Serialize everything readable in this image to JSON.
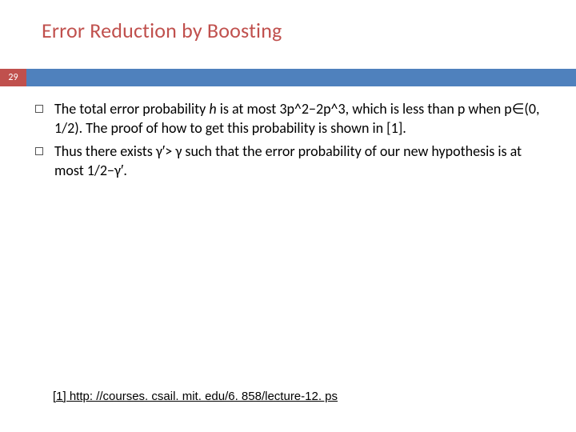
{
  "slide": {
    "number": "29",
    "title": "Error Reduction by Boosting",
    "title_color": "#c0504d",
    "bar_color": "#4f81bd",
    "number_box_color": "#c0504d",
    "background_color": "#ffffff",
    "bullets": [
      {
        "prefix": "The total error probability ",
        "italic": "h",
        "suffix": " is at most 3p^2−2p^3, which is less than p when p∈(0, 1/2). The proof of how to get this probability is shown in [1]."
      },
      {
        "prefix": "Thus there exists γ′> γ such that the error probability of our new hypothesis is at most 1/2−γ′.",
        "italic": "",
        "suffix": ""
      }
    ],
    "reference": "[1] http: //courses. csail. mit. edu/6. 858/lecture-12. ps",
    "body_fontsize": 18,
    "title_fontsize": 26,
    "ref_fontsize": 15
  }
}
